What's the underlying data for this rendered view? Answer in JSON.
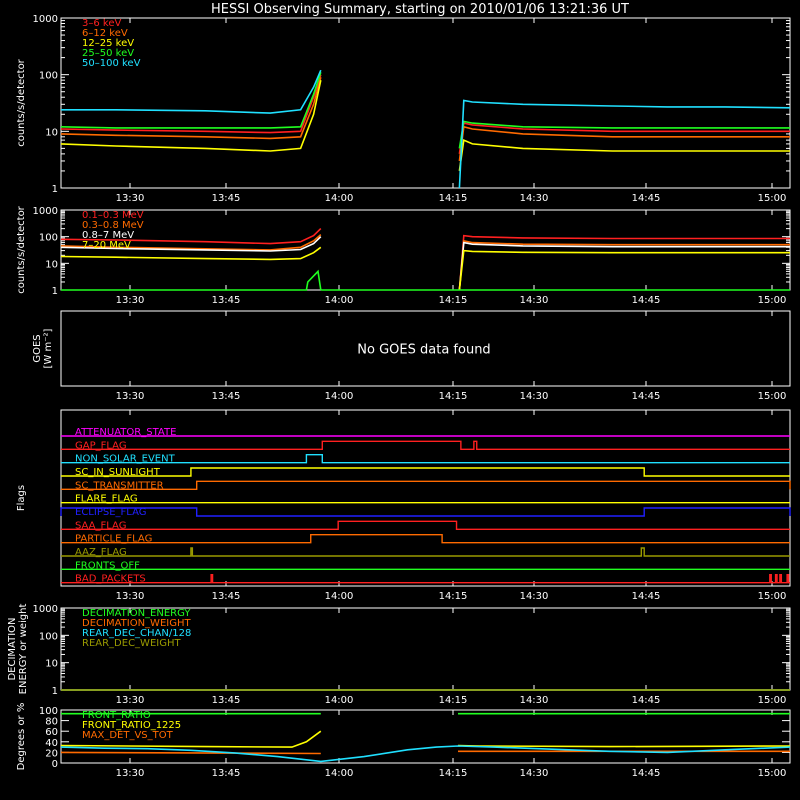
{
  "title": "HESSI Observing Summary, starting on 2010/01/06 13:21:36 UT",
  "x_ticks": [
    "13:30",
    "13:45",
    "14:00",
    "14:15",
    "14:30",
    "14:45",
    "15:00"
  ],
  "chart_data": [
    {
      "type": "line",
      "ylabel": "counts/s/detector",
      "yscale": "log",
      "ylim": [
        1,
        1000
      ],
      "yticks": [
        "1",
        "10",
        "100",
        "1000"
      ],
      "series": [
        {
          "name": "3–6 keV",
          "color": "#ff2020",
          "segments": [
            {
              "x": [
                0,
                38,
                100,
                145,
                166,
                175,
                180
              ],
              "y": [
                11,
                10.5,
                10,
                9.5,
                10,
                40,
                100
              ]
            },
            {
              "x": [
                276,
                279,
                285,
                320,
                382,
                420,
                460,
                505
              ],
              "y": [
                4,
                14,
                13,
                11,
                10,
                10,
                10,
                10
              ]
            }
          ]
        },
        {
          "name": "6–12 keV",
          "color": "#ff6a00",
          "segments": [
            {
              "x": [
                0,
                38,
                100,
                145,
                166,
                175,
                180
              ],
              "y": [
                9,
                8.5,
                8,
                7.5,
                8,
                30,
                90
              ]
            },
            {
              "x": [
                276,
                279,
                285,
                320,
                382,
                420,
                460,
                505
              ],
              "y": [
                3,
                12,
                11,
                9,
                8,
                8,
                8,
                8
              ]
            }
          ]
        },
        {
          "name": "12–25 keV",
          "color": "#ffff00",
          "segments": [
            {
              "x": [
                0,
                38,
                100,
                145,
                166,
                175,
                180
              ],
              "y": [
                6,
                5.5,
                5,
                4.5,
                5,
                20,
                80
              ]
            },
            {
              "x": [
                276,
                279,
                285,
                320,
                382,
                420,
                460,
                505
              ],
              "y": [
                2,
                7,
                6,
                5,
                4.5,
                4.5,
                4.5,
                4.5
              ]
            }
          ]
        },
        {
          "name": "25–50 keV",
          "color": "#20ff20",
          "segments": [
            {
              "x": [
                0,
                38,
                100,
                145,
                166,
                175,
                180
              ],
              "y": [
                12,
                11.5,
                11.5,
                11.5,
                12,
                45,
                110
              ]
            },
            {
              "x": [
                276,
                279,
                285,
                320,
                382,
                420,
                460,
                505
              ],
              "y": [
                5,
                15,
                14,
                12,
                11.5,
                11.5,
                11.5,
                11.5
              ]
            }
          ]
        },
        {
          "name": "50–100 keV",
          "color": "#20e0ff",
          "segments": [
            {
              "x": [
                0,
                38,
                100,
                145,
                166,
                175,
                180
              ],
              "y": [
                24,
                24,
                23,
                21,
                24,
                60,
                120
              ]
            },
            {
              "x": [
                276,
                279,
                285,
                320,
                382,
                420,
                460,
                505
              ],
              "y": [
                1,
                35,
                33,
                30,
                28,
                27,
                27,
                26
              ]
            }
          ]
        }
      ]
    },
    {
      "type": "line",
      "ylabel": "counts/s/detector",
      "yscale": "log",
      "ylim": [
        1,
        1000
      ],
      "yticks": [
        "1",
        "10",
        "100",
        "1000"
      ],
      "series": [
        {
          "name": "0.1–0.3 MeV",
          "color": "#ff2020",
          "segments": [
            {
              "x": [
                0,
                38,
                100,
                145,
                166,
                175,
                180
              ],
              "y": [
                80,
                75,
                65,
                55,
                65,
                110,
                200
              ]
            },
            {
              "x": [
                276,
                279,
                285,
                320,
                382,
                420,
                460,
                505
              ],
              "y": [
                1,
                110,
                100,
                90,
                85,
                85,
                85,
                85
              ]
            }
          ]
        },
        {
          "name": "0.3–0.8 MeV",
          "color": "#ff6a00",
          "segments": [
            {
              "x": [
                0,
                38,
                100,
                145,
                166,
                175,
                180
              ],
              "y": [
                45,
                40,
                35,
                32,
                40,
                70,
                120
              ]
            },
            {
              "x": [
                276,
                279,
                285,
                320,
                382,
                420,
                460,
                505
              ],
              "y": [
                1,
                70,
                60,
                52,
                50,
                50,
                50,
                50
              ]
            }
          ]
        },
        {
          "name": "0.8–7 MeV",
          "color": "#ffffff",
          "segments": [
            {
              "x": [
                0,
                38,
                100,
                145,
                166,
                175,
                180
              ],
              "y": [
                40,
                36,
                32,
                29,
                33,
                55,
                100
              ]
            },
            {
              "x": [
                276,
                279,
                285,
                320,
                382,
                420,
                460,
                505
              ],
              "y": [
                1,
                60,
                52,
                45,
                42,
                42,
                42,
                42
              ]
            }
          ]
        },
        {
          "name": "7–20 MeV",
          "color": "#ffff00",
          "segments": [
            {
              "x": [
                0,
                38,
                100,
                145,
                166,
                175,
                180
              ],
              "y": [
                18,
                17,
                15,
                14,
                15,
                25,
                40
              ]
            },
            {
              "x": [
                276,
                279,
                285,
                320,
                382,
                420,
                460,
                505
              ],
              "y": [
                1,
                30,
                28,
                26,
                25,
                25,
                25,
                25
              ]
            }
          ]
        },
        {
          "name": "",
          "color": "#20ff20",
          "segments": [
            {
              "x": [
                0,
                170,
                171,
                178,
                180
              ],
              "y": [
                1,
                1,
                2,
                5,
                1
              ]
            },
            {
              "x": [
                180,
                505
              ],
              "y": [
                1,
                1
              ]
            }
          ]
        }
      ]
    },
    {
      "type": "line",
      "ylabel": "GOES",
      "ylabel2": "[W m⁻²]",
      "annotation": "No GOES data found",
      "series": []
    },
    {
      "type": "table",
      "ylabel": "Flags",
      "x_range": [
        0,
        505
      ],
      "flags": [
        {
          "name": "ATTENUATOR_STATE",
          "color": "#ff00ff",
          "high": []
        },
        {
          "name": "GAP_FLAG",
          "color": "#ff2020",
          "high": [
            [
              181,
              277
            ],
            [
              286,
              288
            ]
          ]
        },
        {
          "name": "NON_SOLAR_EVENT",
          "color": "#20e0ff",
          "high": [
            [
              170,
              181
            ]
          ]
        },
        {
          "name": "SC_IN_SUNLIGHT",
          "color": "#ffff00",
          "high": [
            [
              90,
              404
            ]
          ]
        },
        {
          "name": "SC_TRANSMITTER",
          "color": "#ff6a00",
          "high": [
            [
              94,
              505
            ]
          ]
        },
        {
          "name": "FLARE_FLAG",
          "color": "#ffff00",
          "high": []
        },
        {
          "name": "ECLIPSE_FLAG",
          "color": "#2020ff",
          "high": [
            [
              0,
              94
            ],
            [
              404,
              505
            ]
          ]
        },
        {
          "name": "SAA_FLAG",
          "color": "#ff2020",
          "high": [
            [
              192,
              274
            ]
          ]
        },
        {
          "name": "PARTICLE_FLAG",
          "color": "#ff6a00",
          "high": [
            [
              173,
              264
            ]
          ]
        },
        {
          "name": "AAZ_FLAG",
          "color": "#9a9a00",
          "high": [
            [
              90,
              91
            ],
            [
              402,
              404
            ]
          ]
        },
        {
          "name": "FRONTS_OFF",
          "color": "#20ff20",
          "high": []
        },
        {
          "name": "BAD_PACKETS",
          "color": "#ff2020",
          "high": [
            [
              104,
              105
            ],
            [
              491,
              492
            ],
            [
              495,
              496
            ],
            [
              498,
              499
            ],
            [
              503,
              504
            ]
          ]
        }
      ]
    },
    {
      "type": "line",
      "ylabel": "DECIMATION",
      "ylabel2": "ENERGY or weight",
      "yscale": "log",
      "ylim": [
        1,
        1000
      ],
      "yticks": [
        "1",
        "10",
        "100",
        "1000"
      ],
      "series": [
        {
          "name": "DECIMATION_ENERGY",
          "color": "#20ff20",
          "segments": [
            {
              "x": [
                0,
                505
              ],
              "y": [
                1,
                1
              ]
            }
          ]
        },
        {
          "name": "DECIMATION_WEIGHT",
          "color": "#ff6a00",
          "segments": [
            {
              "x": [
                0,
                505
              ],
              "y": [
                1,
                1
              ]
            }
          ]
        },
        {
          "name": "REAR_DEC_CHAN/128",
          "color": "#20e0ff",
          "segments": [
            {
              "x": [
                0,
                505
              ],
              "y": [
                1,
                1
              ]
            }
          ]
        },
        {
          "name": "REAR_DEC_WEIGHT",
          "color": "#9a9a00",
          "segments": [
            {
              "x": [
                0,
                505
              ],
              "y": [
                1,
                1
              ]
            }
          ]
        }
      ]
    },
    {
      "type": "line",
      "ylabel": "Degrees or %",
      "ylim": [
        0,
        100
      ],
      "yticks": [
        "0",
        "20",
        "40",
        "60",
        "80",
        "100"
      ],
      "series": [
        {
          "name": "FRONT_RATIO",
          "color": "#20ff20",
          "segments": [
            {
              "x": [
                0,
                180
              ],
              "y": [
                93,
                93
              ]
            },
            {
              "x": [
                275,
                505
              ],
              "y": [
                93,
                93
              ]
            }
          ]
        },
        {
          "name": "FRONT_RATIO_1225",
          "color": "#ffff00",
          "segments": [
            {
              "x": [
                0,
                100,
                160,
                170,
                180
              ],
              "y": [
                33,
                31,
                30,
                40,
                60
              ]
            },
            {
              "x": [
                275,
                290,
                380,
                505
              ],
              "y": [
                33,
                32,
                31,
                32
              ]
            }
          ]
        },
        {
          "name": "MAX_DET_VS_TOT",
          "color": "#ff6a00",
          "segments": [
            {
              "x": [
                0,
                180
              ],
              "y": [
                20,
                18
              ]
            },
            {
              "x": [
                275,
                505
              ],
              "y": [
                22,
                22
              ]
            }
          ]
        },
        {
          "name": "",
          "color": "#20e0ff",
          "segments": [
            {
              "x": [
                0,
                30,
                60,
                90,
                120,
                150,
                180,
                210,
                240,
                260,
                275,
                300,
                340,
                380,
                420,
                460,
                505
              ],
              "y": [
                30,
                28,
                27,
                24,
                19,
                12,
                3,
                12,
                25,
                30,
                32,
                30,
                26,
                22,
                20,
                25,
                30
              ]
            }
          ]
        }
      ]
    }
  ]
}
